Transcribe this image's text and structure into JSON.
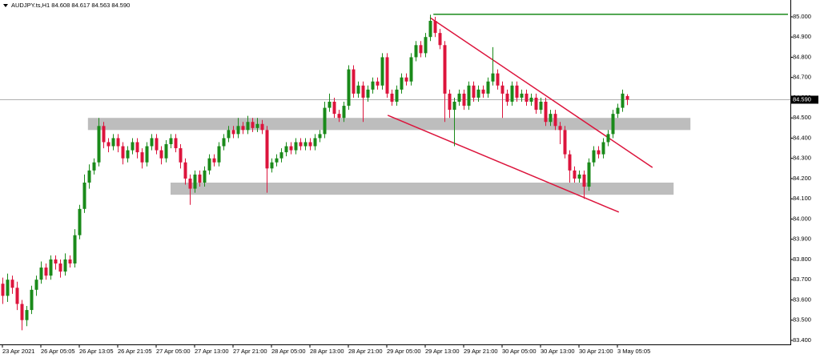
{
  "chart_data": {
    "type": "candlestick",
    "title": "AUDJPY.ts,H1  84.608 84.617 84.563 84.590",
    "up_color": "#1a8a1a",
    "down_color": "#dc143c",
    "xlim": [
      -0.5,
      164
    ],
    "ylim": [
      83.38,
      85.083
    ],
    "yticks": [
      {
        "value": 83.4,
        "label": "83.400"
      },
      {
        "value": 83.5,
        "label": "83.500"
      },
      {
        "value": 83.6,
        "label": "83.600"
      },
      {
        "value": 83.7,
        "label": "83.700"
      },
      {
        "value": 83.8,
        "label": "83.800"
      },
      {
        "value": 83.9,
        "label": "83.900"
      },
      {
        "value": 84,
        "label": "84.000"
      },
      {
        "value": 84.1,
        "label": "84.100"
      },
      {
        "value": 84.2,
        "label": "84.200"
      },
      {
        "value": 84.3,
        "label": "84.300"
      },
      {
        "value": 84.4,
        "label": "84.400"
      },
      {
        "value": 84.5,
        "label": "84.500"
      },
      {
        "value": 84.6,
        "label": "84.600"
      },
      {
        "value": 84.7,
        "label": "84.700"
      },
      {
        "value": 84.8,
        "label": "84.800"
      },
      {
        "value": 84.9,
        "label": "84.900"
      },
      {
        "value": 85,
        "label": "85.000"
      }
    ],
    "xticks": [
      {
        "value": 0,
        "label": "23 Apr 2021"
      },
      {
        "value": 8,
        "label": "26 Apr 05:05"
      },
      {
        "value": 16,
        "label": "26 Apr 13:05"
      },
      {
        "value": 24,
        "label": "26 Apr 21:05"
      },
      {
        "value": 32,
        "label": "27 Apr 05:00"
      },
      {
        "value": 40,
        "label": "27 Apr 13:00"
      },
      {
        "value": 48,
        "label": "27 Apr 21:00"
      },
      {
        "value": 56,
        "label": "28 Apr 05:00"
      },
      {
        "value": 64,
        "label": "28 Apr 13:00"
      },
      {
        "value": 72,
        "label": "28 Apr 21:00"
      },
      {
        "value": 80,
        "label": "29 Apr 05:00"
      },
      {
        "value": 88,
        "label": "29 Apr 13:00"
      },
      {
        "value": 96,
        "label": "29 Apr 21:00"
      },
      {
        "value": 104,
        "label": "30 Apr 05:00"
      },
      {
        "value": 112,
        "label": "30 Apr 13:00"
      },
      {
        "value": 120,
        "label": "30 Apr 21:00"
      },
      {
        "value": 128,
        "label": "3 May 05:05"
      }
    ],
    "last_price": {
      "value": 84.59,
      "label": "84.590"
    },
    "zones": [
      {
        "from": 84.5,
        "to": 84.44,
        "x": [
          17.8,
          143.2
        ]
      },
      {
        "from": 84.18,
        "to": 84.12,
        "x": [
          35,
          139.7
        ]
      }
    ],
    "lines": [
      {
        "color": "#dc143c",
        "x": [
          89,
          135.3
        ],
        "y": [
          84.996,
          84.255
        ]
      },
      {
        "color": "#dc143c",
        "x": [
          80.2,
          128.3
        ],
        "y": [
          84.513,
          84.034
        ]
      },
      {
        "color": "#1a8a1a",
        "x": [
          89.7,
          163.5
        ],
        "y": [
          85.012,
          85.012
        ]
      }
    ],
    "candles": [
      [
        83.68,
        83.71,
        83.58,
        83.62
      ],
      [
        83.62,
        83.73,
        83.59,
        83.7
      ],
      [
        83.7,
        83.72,
        83.63,
        83.66
      ],
      [
        83.66,
        83.69,
        83.55,
        83.58
      ],
      [
        83.58,
        83.6,
        83.45,
        83.5
      ],
      [
        83.5,
        83.57,
        83.47,
        83.55
      ],
      [
        83.55,
        83.67,
        83.53,
        83.65
      ],
      [
        83.65,
        83.72,
        83.62,
        83.7
      ],
      [
        83.7,
        83.79,
        83.68,
        83.76
      ],
      [
        83.76,
        83.78,
        83.7,
        83.72
      ],
      [
        83.72,
        83.82,
        83.7,
        83.8
      ],
      [
        83.8,
        83.82,
        83.75,
        83.78
      ],
      [
        83.78,
        83.8,
        83.71,
        83.74
      ],
      [
        83.74,
        83.83,
        83.72,
        83.8
      ],
      [
        83.8,
        83.82,
        83.76,
        83.78
      ],
      [
        83.78,
        83.95,
        83.76,
        83.92
      ],
      [
        83.92,
        84.07,
        83.9,
        84.05
      ],
      [
        84.05,
        84.22,
        84.03,
        84.18
      ],
      [
        84.18,
        84.27,
        84.15,
        84.24
      ],
      [
        84.24,
        84.3,
        84.22,
        84.28
      ],
      [
        84.28,
        84.5,
        84.26,
        84.46
      ],
      [
        84.46,
        84.48,
        84.35,
        84.38
      ],
      [
        84.38,
        84.4,
        84.33,
        84.36
      ],
      [
        84.36,
        84.42,
        84.34,
        84.4
      ],
      [
        84.4,
        84.42,
        84.33,
        84.36
      ],
      [
        84.36,
        84.38,
        84.27,
        84.3
      ],
      [
        84.3,
        84.36,
        84.28,
        84.34
      ],
      [
        84.34,
        84.4,
        84.32,
        84.38
      ],
      [
        84.38,
        84.4,
        84.3,
        84.33
      ],
      [
        84.33,
        84.35,
        84.25,
        84.28
      ],
      [
        84.28,
        84.38,
        84.26,
        84.36
      ],
      [
        84.36,
        84.42,
        84.34,
        84.4
      ],
      [
        84.4,
        84.42,
        84.32,
        84.34
      ],
      [
        84.34,
        84.36,
        84.27,
        84.3
      ],
      [
        84.3,
        84.39,
        84.28,
        84.37
      ],
      [
        84.37,
        84.42,
        84.35,
        84.4
      ],
      [
        84.4,
        84.42,
        84.33,
        84.35
      ],
      [
        84.35,
        84.37,
        84.25,
        84.28
      ],
      [
        84.28,
        84.3,
        84.17,
        84.2
      ],
      [
        84.2,
        84.22,
        84.07,
        84.15
      ],
      [
        84.15,
        84.24,
        84.13,
        84.22
      ],
      [
        84.22,
        84.24,
        84.16,
        84.18
      ],
      [
        84.18,
        84.26,
        84.16,
        84.24
      ],
      [
        84.24,
        84.32,
        84.22,
        84.3
      ],
      [
        84.3,
        84.32,
        84.26,
        84.28
      ],
      [
        84.28,
        84.38,
        84.26,
        84.36
      ],
      [
        84.36,
        84.42,
        84.34,
        84.4
      ],
      [
        84.4,
        84.46,
        84.38,
        84.44
      ],
      [
        84.44,
        84.46,
        84.4,
        84.42
      ],
      [
        84.42,
        84.5,
        84.4,
        84.46
      ],
      [
        84.46,
        84.48,
        84.42,
        84.44
      ],
      [
        84.44,
        84.51,
        84.42,
        84.48
      ],
      [
        84.48,
        84.5,
        84.43,
        84.45
      ],
      [
        84.45,
        84.5,
        84.43,
        84.47
      ],
      [
        84.47,
        84.49,
        84.42,
        84.44
      ],
      [
        84.44,
        84.46,
        84.13,
        84.25
      ],
      [
        84.25,
        84.3,
        84.23,
        84.28
      ],
      [
        84.28,
        84.32,
        84.26,
        84.3
      ],
      [
        84.3,
        84.35,
        84.28,
        84.33
      ],
      [
        84.33,
        84.38,
        84.31,
        84.36
      ],
      [
        84.36,
        84.38,
        84.32,
        84.34
      ],
      [
        84.34,
        84.4,
        84.32,
        84.38
      ],
      [
        84.38,
        84.4,
        84.34,
        84.36
      ],
      [
        84.36,
        84.4,
        84.34,
        84.38
      ],
      [
        84.38,
        84.4,
        84.34,
        84.36
      ],
      [
        84.36,
        84.42,
        84.34,
        84.4
      ],
      [
        84.4,
        84.44,
        84.38,
        84.42
      ],
      [
        84.42,
        84.58,
        84.4,
        84.55
      ],
      [
        84.55,
        84.62,
        84.53,
        84.58
      ],
      [
        84.58,
        84.6,
        84.5,
        84.52
      ],
      [
        84.52,
        84.54,
        84.48,
        84.5
      ],
      [
        84.5,
        84.58,
        84.48,
        84.56
      ],
      [
        84.56,
        84.76,
        84.54,
        84.74
      ],
      [
        84.74,
        84.76,
        84.6,
        84.62
      ],
      [
        84.62,
        84.68,
        84.6,
        84.66
      ],
      [
        84.66,
        84.68,
        84.48,
        84.6
      ],
      [
        84.6,
        84.66,
        84.58,
        84.64
      ],
      [
        84.64,
        84.7,
        84.62,
        84.68
      ],
      [
        84.68,
        84.7,
        84.64,
        84.66
      ],
      [
        84.66,
        84.82,
        84.64,
        84.8
      ],
      [
        84.8,
        84.82,
        84.6,
        84.62
      ],
      [
        84.62,
        84.64,
        84.56,
        84.58
      ],
      [
        84.58,
        84.66,
        84.56,
        84.64
      ],
      [
        84.64,
        84.72,
        84.62,
        84.7
      ],
      [
        84.7,
        84.72,
        84.66,
        84.68
      ],
      [
        84.68,
        84.82,
        84.66,
        84.8
      ],
      [
        84.8,
        84.88,
        84.78,
        84.86
      ],
      [
        84.86,
        84.88,
        84.8,
        84.82
      ],
      [
        84.82,
        84.92,
        84.8,
        84.9
      ],
      [
        84.9,
        85.01,
        84.88,
        84.98
      ],
      [
        84.98,
        85.0,
        84.9,
        84.92
      ],
      [
        84.92,
        84.94,
        84.84,
        84.86
      ],
      [
        84.86,
        84.88,
        84.48,
        84.62
      ],
      [
        84.62,
        84.64,
        84.5,
        84.54
      ],
      [
        84.54,
        84.6,
        84.36,
        84.58
      ],
      [
        84.58,
        84.64,
        84.56,
        84.62
      ],
      [
        84.62,
        84.64,
        84.54,
        84.56
      ],
      [
        84.56,
        84.68,
        84.54,
        84.66
      ],
      [
        84.66,
        84.68,
        84.58,
        84.6
      ],
      [
        84.6,
        84.66,
        84.58,
        84.64
      ],
      [
        84.64,
        84.66,
        84.6,
        84.62
      ],
      [
        84.62,
        84.7,
        84.6,
        84.68
      ],
      [
        84.68,
        84.85,
        84.66,
        84.72
      ],
      [
        84.72,
        84.74,
        84.64,
        84.66
      ],
      [
        84.66,
        84.68,
        84.5,
        84.62
      ],
      [
        84.62,
        84.64,
        84.56,
        84.58
      ],
      [
        84.58,
        84.68,
        84.56,
        84.66
      ],
      [
        84.66,
        84.68,
        84.58,
        84.6
      ],
      [
        84.6,
        84.64,
        84.58,
        84.62
      ],
      [
        84.62,
        84.64,
        84.56,
        84.58
      ],
      [
        84.58,
        84.62,
        84.56,
        84.6
      ],
      [
        84.6,
        84.62,
        84.52,
        84.54
      ],
      [
        84.54,
        84.6,
        84.52,
        84.58
      ],
      [
        84.58,
        84.6,
        84.46,
        84.48
      ],
      [
        84.48,
        84.54,
        84.46,
        84.52
      ],
      [
        84.52,
        84.54,
        84.44,
        84.46
      ],
      [
        84.46,
        84.48,
        84.37,
        84.44
      ],
      [
        84.44,
        84.46,
        84.3,
        84.32
      ],
      [
        84.32,
        84.34,
        84.18,
        84.24
      ],
      [
        84.24,
        84.26,
        84.18,
        84.2
      ],
      [
        84.2,
        84.24,
        84.18,
        84.22
      ],
      [
        84.22,
        84.24,
        84.1,
        84.16
      ],
      [
        84.16,
        84.3,
        84.14,
        84.28
      ],
      [
        84.28,
        84.36,
        84.26,
        84.34
      ],
      [
        84.34,
        84.36,
        84.3,
        84.32
      ],
      [
        84.32,
        84.4,
        84.3,
        84.38
      ],
      [
        84.38,
        84.44,
        84.36,
        84.42
      ],
      [
        84.42,
        84.54,
        84.4,
        84.52
      ],
      [
        84.52,
        84.57,
        84.5,
        84.55
      ],
      [
        84.55,
        84.64,
        84.53,
        84.62
      ],
      [
        84.608,
        84.617,
        84.563,
        84.59
      ]
    ]
  }
}
